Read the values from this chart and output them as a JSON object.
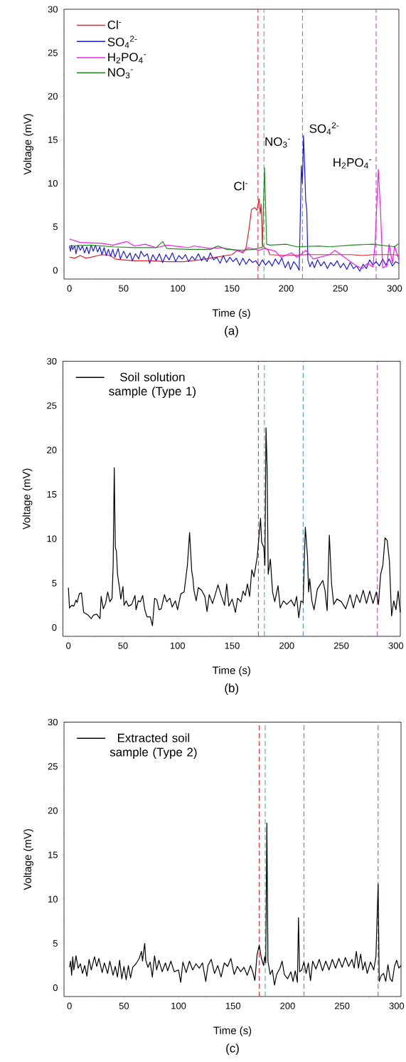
{
  "chart_data": [
    {
      "type": "line",
      "title": "(a)",
      "xlabel": "Time (s)",
      "ylabel": "Voltage (mV)",
      "xlim": [
        -5,
        304
      ],
      "ylim": [
        -1,
        30
      ],
      "xticks": [
        0,
        {
          "value": 25,
          "label": null
        },
        50,
        {
          "value": 75,
          "label": null
        },
        100,
        {
          "value": 125,
          "label": null
        },
        150,
        {
          "value": 175,
          "label": null
        },
        200,
        {
          "value": 225,
          "label": null
        },
        250,
        {
          "value": 275,
          "label": null
        },
        300
      ],
      "yticks": [
        0,
        {
          "value": 2.5,
          "label": null
        },
        5,
        {
          "value": 7.5,
          "label": null
        },
        10,
        {
          "value": 12.5,
          "label": null
        },
        15,
        {
          "value": 17.5,
          "label": null
        },
        20,
        {
          "value": 22.5,
          "label": null
        },
        25,
        {
          "value": 27.5,
          "label": null
        },
        30
      ],
      "legend": "top left",
      "series": [
        {
          "name": "Cl$^{-}$",
          "color": "#e8212a",
          "x": [
            0,
            5,
            10,
            15,
            20,
            30,
            38,
            42,
            50,
            60,
            75,
            90,
            105,
            120,
            135,
            150,
            155,
            160,
            163,
            166,
            168,
            171,
            173,
            175,
            176,
            177,
            178,
            180,
            183,
            185,
            200,
            220,
            240,
            260,
            270,
            280,
            300,
            304
          ],
          "values": [
            1.5,
            1.4,
            1.7,
            1.4,
            1.5,
            1.8,
            1.7,
            1.3,
            1.2,
            1.1,
            1.1,
            1.0,
            1.0,
            1.2,
            1.5,
            1.8,
            2.3,
            2.0,
            2.6,
            5.0,
            7.0,
            7.2,
            6.9,
            8.2,
            6.5,
            7.6,
            3.0,
            2.6,
            2.4,
            1.8,
            1.7,
            1.8,
            1.8,
            1.8,
            1.7,
            1.8,
            1.8,
            1.7
          ]
        },
        {
          "name": "SO$_{4}$$^{2-}$",
          "color": "#1a1ae0",
          "x": [
            0,
            1,
            2,
            3,
            5,
            6,
            8,
            10,
            12,
            14,
            16,
            18,
            20,
            22,
            24,
            26,
            28,
            30,
            32,
            34,
            36,
            38,
            40,
            42,
            45,
            47,
            50,
            53,
            56,
            58,
            61,
            64,
            66,
            69,
            72,
            74,
            77,
            80,
            83,
            86,
            89,
            92,
            95,
            98,
            101,
            104,
            107,
            110,
            113,
            116,
            119,
            122,
            124,
            127,
            130,
            133,
            136,
            139,
            142,
            145,
            148,
            151,
            154,
            157,
            160,
            163,
            166,
            169,
            172,
            175,
            178,
            181,
            184,
            187,
            190,
            193,
            196,
            199,
            202,
            204,
            207,
            210,
            212,
            213,
            214,
            215,
            216,
            217,
            218,
            219,
            220,
            222,
            224,
            226,
            229,
            232,
            235,
            238,
            241,
            244,
            247,
            250,
            253,
            256,
            259,
            262,
            265,
            268,
            271,
            274,
            277,
            280,
            283,
            286,
            289,
            292,
            295,
            298,
            301,
            304
          ],
          "values": [
            2.8,
            2.2,
            2.9,
            2.4,
            2.8,
            1.9,
            2.9,
            2.3,
            2.8,
            2.0,
            2.7,
            1.9,
            2.9,
            2.2,
            2.9,
            2.1,
            2.7,
            1.8,
            2.6,
            1.7,
            2.4,
            1.6,
            2.4,
            1.5,
            2.5,
            1.3,
            2.2,
            1.4,
            2.0,
            1.1,
            1.9,
            1.3,
            2.2,
            1.6,
            1.9,
            0.8,
            1.8,
            1.1,
            1.9,
            0.9,
            1.8,
            1.2,
            2.0,
            1.0,
            1.7,
            1.3,
            1.8,
            1.0,
            1.6,
            1.2,
            1.9,
            1.1,
            1.6,
            1.0,
            2.0,
            1.2,
            1.5,
            0.8,
            1.7,
            0.9,
            1.5,
            1.0,
            1.4,
            0.6,
            1.4,
            0.7,
            1.3,
            0.9,
            1.1,
            0.5,
            1.2,
            0.6,
            1.1,
            0.5,
            1.3,
            0.7,
            1.4,
            0.3,
            1.0,
            0.1,
            1.0,
            0.5,
            0.0,
            6.0,
            12.0,
            10.0,
            15.5,
            12.0,
            8.0,
            7.0,
            1.2,
            0.4,
            1.0,
            0.3,
            1.2,
            0.5,
            1.0,
            0.2,
            0.9,
            0.5,
            1.1,
            0.3,
            0.8,
            0.1,
            0.9,
            0.2,
            0.5,
            -0.1,
            0.7,
            0.2,
            1.2,
            0.6,
            1.0,
            0.5,
            1.3,
            0.6,
            1.3,
            0.5,
            1.0,
            0.8
          ]
        },
        {
          "name": "H$_{2}$PO$_{4}$$^{-}$",
          "color": "#f01cf0",
          "x": [
            0,
            10,
            30,
            40,
            53,
            60,
            70,
            80,
            90,
            110,
            115,
            130,
            140,
            150,
            160,
            165,
            175,
            180,
            190,
            195,
            205,
            210,
            218,
            225,
            240,
            245,
            255,
            265,
            270,
            275,
            280,
            282,
            285,
            287,
            289,
            293,
            295,
            298,
            300,
            304
          ],
          "values": [
            3.6,
            3.2,
            3.1,
            2.9,
            3.3,
            2.8,
            3.0,
            2.6,
            2.9,
            2.6,
            2.8,
            2.5,
            2.6,
            2.4,
            2.1,
            2.6,
            2.3,
            2.5,
            2.2,
            1.5,
            2.0,
            1.5,
            2.3,
            1.3,
            1.8,
            2.3,
            1.4,
            0.5,
            0.2,
            0.8,
            0.4,
            3.0,
            11.6,
            7.0,
            0.3,
            0.5,
            3.0,
            0.8,
            2.8,
            1.2
          ]
        },
        {
          "name": "NO$_{3}$$^{-}$",
          "color": "#1e8c1e",
          "x": [
            0,
            20,
            40,
            60,
            80,
            86,
            90,
            110,
            130,
            137,
            145,
            160,
            170,
            176,
            178,
            180,
            182,
            185,
            200,
            210,
            230,
            240,
            260,
            280,
            300,
            304
          ],
          "values": [
            2.8,
            2.9,
            2.7,
            2.6,
            2.6,
            3.3,
            2.5,
            2.4,
            2.4,
            2.8,
            2.4,
            2.3,
            2.4,
            2.6,
            2.6,
            11.8,
            3.0,
            2.9,
            3.0,
            2.7,
            2.8,
            2.7,
            2.9,
            3.0,
            2.7,
            3.1
          ]
        }
      ],
      "annotations": [
        "Cl$^{-}$",
        "NO$_{3}$$^{-}$",
        "SO$_{4}$$^{2-}$",
        "H$_{2}$PO$_{4}$$^{-}$"
      ],
      "ref_lines": [
        {
          "axis": "x",
          "value": 174,
          "color": "#e8212a",
          "line_style": "dashed"
        },
        {
          "axis": "x",
          "value": 179.5,
          "color": "#2bb673",
          "line_style": "dashed"
        },
        {
          "axis": "x",
          "value": 215,
          "color": "#3a8fc7",
          "line_style": "dashed"
        },
        {
          "axis": "x",
          "value": 283,
          "color": "#b03fb0",
          "line_style": "dashed"
        }
      ]
    },
    {
      "type": "line",
      "title": "(b)",
      "xlabel": "Time (s)",
      "ylabel": "Voltage (mV)",
      "xlim": [
        -5,
        304
      ],
      "ylim": [
        -1,
        30
      ],
      "xticks": [
        0,
        {
          "value": 25,
          "label": null
        },
        50,
        {
          "value": 75,
          "label": null
        },
        100,
        {
          "value": 125,
          "label": null
        },
        150,
        {
          "value": 175,
          "label": null
        },
        200,
        {
          "value": 225,
          "label": null
        },
        250,
        {
          "value": 275,
          "label": null
        },
        300
      ],
      "yticks": [
        0,
        {
          "value": 2.5,
          "label": null
        },
        5,
        {
          "value": 7.5,
          "label": null
        },
        10,
        {
          "value": 12.5,
          "label": null
        },
        15,
        {
          "value": 17.5,
          "label": null
        },
        20,
        {
          "value": 22.5,
          "label": null
        },
        25,
        {
          "value": 27.5,
          "label": null
        },
        30
      ],
      "legend": "top left",
      "series": [
        {
          "name": "Soil solution sample (Type 1)",
          "color": "#000000",
          "x": [
            0,
            1,
            3,
            5,
            7,
            8,
            10,
            12,
            14,
            18,
            21,
            23,
            26,
            29,
            30,
            32,
            34,
            36,
            38,
            40,
            41,
            42,
            43,
            44,
            45,
            47,
            48,
            50,
            51,
            53,
            55,
            58,
            61,
            62,
            64,
            66,
            68,
            70,
            72,
            75,
            77,
            79,
            81,
            83,
            85,
            88,
            90,
            93,
            95,
            98,
            100,
            103,
            106,
            109,
            111,
            113,
            114,
            115,
            117,
            119,
            122,
            125,
            127,
            129,
            132,
            134,
            137,
            140,
            143,
            145,
            147,
            150,
            153,
            155,
            158,
            160,
            162,
            164,
            166,
            168,
            170,
            173,
            176,
            177,
            179,
            180,
            181,
            182,
            183,
            185,
            187,
            189,
            192,
            194,
            197,
            200,
            204,
            207,
            209,
            211,
            213,
            215,
            217,
            219,
            220,
            221,
            223,
            225,
            228,
            230,
            233,
            235,
            237,
            239,
            241,
            243,
            246,
            250,
            254,
            258,
            261,
            264,
            267,
            270,
            273,
            276,
            279,
            282,
            284,
            286,
            288,
            290,
            292,
            294,
            296,
            298,
            300,
            302,
            304
          ],
          "values": [
            4.5,
            2.2,
            2.5,
            2.4,
            3.1,
            2.8,
            3.8,
            3.9,
            1.7,
            1.4,
            1.0,
            1.4,
            1.5,
            1.0,
            3.5,
            2.1,
            2.7,
            4.0,
            2.9,
            3.3,
            7.0,
            18.0,
            9.0,
            8.6,
            6.0,
            4.3,
            3.2,
            4.6,
            2.5,
            3.0,
            2.4,
            2.6,
            3.6,
            2.0,
            3.0,
            2.9,
            3.6,
            2.0,
            1.2,
            1.2,
            0.2,
            3.3,
            3.1,
            2.0,
            2.1,
            3.7,
            2.9,
            3.3,
            2.3,
            3.0,
            2.0,
            3.8,
            4.0,
            7.0,
            10.7,
            6.3,
            5.6,
            4.2,
            3.0,
            4.5,
            4.2,
            3.5,
            1.8,
            3.7,
            2.7,
            3.5,
            4.8,
            3.6,
            2.5,
            4.9,
            2.4,
            3.2,
            1.7,
            3.3,
            2.9,
            4.1,
            3.6,
            4.9,
            3.5,
            6.5,
            5.7,
            8.0,
            12.3,
            9.6,
            9.0,
            7.0,
            22.5,
            18.0,
            6.0,
            7.7,
            4.0,
            2.9,
            4.7,
            2.2,
            3.0,
            2.6,
            3.1,
            2.4,
            3.5,
            1.1,
            3.0,
            2.8,
            11.3,
            8.0,
            4.0,
            5.5,
            3.0,
            2.0,
            4.3,
            4.7,
            5.3,
            4.2,
            1.9,
            10.4,
            5.0,
            2.6,
            3.2,
            2.9,
            2.1,
            3.7,
            2.2,
            3.7,
            2.8,
            4.2,
            2.7,
            4.1,
            2.7,
            4.0,
            2.6,
            6.0,
            7.0,
            10.1,
            9.8,
            7.5,
            1.3,
            3.0,
            2.0,
            4.1,
            1.7
          ]
        }
      ],
      "ref_lines": [
        {
          "axis": "x",
          "value": 174,
          "color": "#e8212a",
          "line_style": "dashed"
        },
        {
          "axis": "x",
          "value": 179.5,
          "color": "#2bb673",
          "line_style": "dashed"
        },
        {
          "axis": "x",
          "value": 215,
          "color": "#3a8fc7",
          "line_style": "dashed"
        },
        {
          "axis": "x",
          "value": 283,
          "color": "#b03fb0",
          "line_style": "dashed"
        }
      ]
    },
    {
      "type": "line",
      "title": "(c)",
      "xlabel": "Time (s)",
      "ylabel": "Voltage (mV)",
      "xlim": [
        -5,
        304
      ],
      "ylim": [
        -1,
        30
      ],
      "xticks": [
        0,
        {
          "value": 25,
          "label": null
        },
        50,
        {
          "value": 75,
          "label": null
        },
        100,
        {
          "value": 125,
          "label": null
        },
        150,
        {
          "value": 175,
          "label": null
        },
        200,
        {
          "value": 225,
          "label": null
        },
        250,
        {
          "value": 275,
          "label": null
        },
        300
      ],
      "yticks": [
        0,
        {
          "value": 2.5,
          "label": null
        },
        5,
        {
          "value": 7.5,
          "label": null
        },
        10,
        {
          "value": 12.5,
          "label": null
        },
        15,
        {
          "value": 17.5,
          "label": null
        },
        20,
        {
          "value": 22.5,
          "label": null
        },
        25,
        {
          "value": 27.5,
          "label": null
        },
        30
      ],
      "legend": "top left",
      "series": [
        {
          "name": "Extracted soil sample (Type 2)",
          "color": "#000000",
          "x": [
            0,
            1,
            2,
            3,
            4,
            6,
            8,
            10,
            12,
            14,
            16,
            18,
            20,
            23,
            25,
            27,
            30,
            32,
            35,
            37,
            40,
            42,
            44,
            46,
            48,
            50,
            52,
            54,
            56,
            58,
            61,
            64,
            66,
            67,
            69,
            70,
            72,
            74,
            76,
            78,
            80,
            82,
            85,
            88,
            90,
            93,
            96,
            100,
            102,
            104,
            107,
            110,
            113,
            116,
            119,
            122,
            125,
            127,
            130,
            133,
            136,
            139,
            142,
            145,
            148,
            151,
            154,
            157,
            160,
            163,
            166,
            168,
            170,
            172,
            174,
            176,
            178,
            179,
            180,
            181,
            182,
            184,
            186,
            188,
            190,
            193,
            195,
            197,
            200,
            203,
            205,
            207,
            209,
            210,
            211,
            213,
            215,
            217,
            219,
            221,
            223,
            226,
            229,
            232,
            235,
            238,
            241,
            244,
            247,
            250,
            253,
            256,
            259,
            261,
            263,
            265,
            267,
            269,
            271,
            273,
            276,
            279,
            281,
            283,
            284,
            286,
            288,
            290,
            292,
            294,
            296,
            298,
            300,
            302,
            304
          ],
          "values": [
            2.3,
            3.0,
            1.4,
            3.5,
            2.0,
            3.6,
            2.2,
            2.7,
            1.6,
            2.5,
            1.3,
            3.2,
            2.0,
            3.5,
            2.4,
            3.3,
            1.7,
            2.8,
            1.6,
            3.0,
            1.4,
            2.4,
            1.2,
            3.1,
            1.0,
            2.4,
            0.9,
            2.5,
            1.1,
            2.3,
            2.7,
            3.3,
            4.1,
            3.0,
            5.0,
            3.1,
            2.3,
            2.9,
            1.2,
            3.6,
            2.0,
            3.1,
            1.8,
            2.8,
            1.9,
            3.0,
            1.8,
            2.0,
            0.6,
            2.9,
            1.7,
            3.0,
            2.0,
            2.7,
            2.2,
            2.8,
            0.7,
            2.5,
            3.2,
            1.6,
            2.5,
            1.2,
            2.8,
            2.4,
            3.3,
            1.5,
            2.4,
            1.8,
            2.3,
            1.4,
            2.5,
            1.8,
            0.8,
            3.7,
            4.8,
            3.3,
            2.5,
            3.5,
            2.8,
            18.6,
            3.0,
            1.5,
            2.0,
            0.3,
            1.5,
            2.2,
            3.0,
            1.5,
            1.0,
            1.8,
            0.7,
            1.9,
            0.6,
            7.9,
            1.8,
            2.0,
            2.9,
            1.6,
            2.8,
            0.8,
            3.0,
            2.1,
            3.2,
            1.9,
            3.0,
            2.0,
            3.2,
            2.2,
            3.3,
            2.3,
            3.4,
            2.4,
            3.2,
            2.2,
            4.1,
            2.2,
            3.8,
            2.0,
            2.9,
            1.6,
            2.9,
            2.0,
            3.5,
            11.7,
            0.7,
            1.4,
            1.6,
            0.7,
            2.6,
            1.0,
            0.7,
            2.4,
            3.1,
            2.2,
            2.5
          ]
        }
      ],
      "ref_lines": [
        {
          "axis": "x",
          "value": 174,
          "color": "#e8212a",
          "line_style": "dashed"
        },
        {
          "axis": "x",
          "value": 179.5,
          "color": "#2bb673",
          "line_style": "dashed"
        },
        {
          "axis": "x",
          "value": 215,
          "color": "#3a8fc7",
          "line_style": "dashed"
        },
        {
          "axis": "x",
          "value": 283,
          "color": "#b03fb0",
          "line_style": "dashed"
        }
      ]
    }
  ]
}
